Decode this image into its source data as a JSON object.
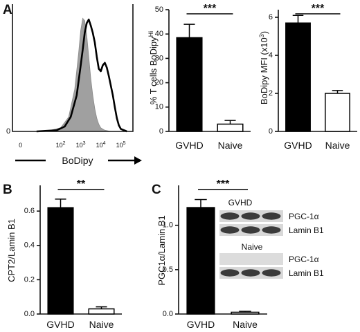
{
  "panels": {
    "A": {
      "letter": "A"
    },
    "B": {
      "letter": "B"
    },
    "C": {
      "letter": "C"
    }
  },
  "chart_data": [
    {
      "id": "A-histogram",
      "type": "area",
      "xlabel": "BoDipy",
      "x_ticks": [
        "0",
        "10^2",
        "10^3",
        "10^4",
        "10^5"
      ],
      "x_tick_positions": [
        0,
        2,
        3,
        4,
        5
      ],
      "y_ticks": [
        "0"
      ],
      "xlim": [
        -0.4,
        5.6
      ],
      "ylim": [
        0,
        100
      ],
      "grid": false,
      "series": [
        {
          "style": "filled-gray",
          "x": [
            0.8,
            1.5,
            2.0,
            2.4,
            2.7,
            2.9,
            3.0,
            3.1,
            3.2,
            3.3,
            3.4,
            3.5,
            3.6,
            3.7,
            3.8,
            3.9,
            4.0,
            4.2,
            4.5,
            5.0
          ],
          "y": [
            0,
            1,
            3,
            12,
            35,
            66,
            84,
            94,
            92,
            80,
            62,
            44,
            30,
            19,
            11,
            6,
            3,
            1,
            0,
            0
          ]
        },
        {
          "style": "black-line",
          "x": [
            0.8,
            1.8,
            2.2,
            2.5,
            2.8,
            3.0,
            3.1,
            3.2,
            3.3,
            3.4,
            3.5,
            3.6,
            3.7,
            3.8,
            3.9,
            4.0,
            4.1,
            4.2,
            4.3,
            4.4,
            4.5,
            4.6,
            4.7,
            4.8,
            4.9,
            5.0,
            5.3
          ],
          "y": [
            0,
            1,
            4,
            12,
            30,
            55,
            68,
            82,
            90,
            93,
            88,
            82,
            74,
            62,
            52,
            50,
            55,
            57,
            53,
            46,
            38,
            30,
            20,
            11,
            5,
            2,
            0
          ]
        }
      ]
    },
    {
      "id": "A-percent",
      "type": "bar",
      "categories": [
        "GVHD",
        "Naive"
      ],
      "values": [
        38.5,
        3.0
      ],
      "errors": [
        5.5,
        1.5
      ],
      "ylabel": "% T cells BoDipy^Hi",
      "ylabel_main": "% T cells BoDipy",
      "ylabel_sup": "Hi",
      "ylim": [
        0,
        50
      ],
      "y_ticks": [
        "0",
        "10",
        "20",
        "30",
        "40",
        "50"
      ],
      "y_tick_values": [
        0,
        10,
        20,
        30,
        40,
        50
      ],
      "significance": "***",
      "bar_styles": [
        "filled",
        "open"
      ]
    },
    {
      "id": "A-mfi",
      "type": "bar",
      "categories": [
        "GVHD",
        "Naive"
      ],
      "values": [
        5.7,
        2.0
      ],
      "errors": [
        0.4,
        0.15
      ],
      "ylabel": "BoDipy MFI (x10^3)",
      "ylabel_main": "BoDipy MFI (x10",
      "ylabel_sup": "3",
      "ylabel_end": ")",
      "ylim": [
        0,
        6.4
      ],
      "y_ticks": [
        "0",
        "2",
        "4",
        "6"
      ],
      "y_tick_values": [
        0,
        2,
        4,
        6
      ],
      "significance": "***",
      "bar_styles": [
        "filled",
        "open"
      ]
    },
    {
      "id": "B-cpt2",
      "type": "bar",
      "categories": [
        "GVHD",
        "Naive"
      ],
      "values": [
        0.62,
        0.03
      ],
      "errors": [
        0.05,
        0.012
      ],
      "ylabel": "CPT2/Lamin B1",
      "ylim": [
        0,
        0.75
      ],
      "y_ticks": [
        "0.0",
        "0.2",
        "0.4",
        "0.6"
      ],
      "y_tick_values": [
        0,
        0.2,
        0.4,
        0.6
      ],
      "significance": "**",
      "bar_styles": [
        "filled",
        "open"
      ]
    },
    {
      "id": "C-pgc1a",
      "type": "bar",
      "categories": [
        "GVHD",
        "Naive"
      ],
      "values": [
        1.2,
        0.02
      ],
      "errors": [
        0.09,
        0.01
      ],
      "ylabel": "PGC1α/Lamin B1",
      "ylim": [
        0,
        1.45
      ],
      "y_ticks": [
        "0.0",
        "0.5",
        "1.0"
      ],
      "y_tick_values": [
        0,
        0.5,
        1.0
      ],
      "significance": "***",
      "bar_styles": [
        "filled",
        "open"
      ]
    }
  ],
  "blot": {
    "groups": [
      {
        "title": "GVHD",
        "rows": [
          {
            "label": "PGC-1α",
            "band": "dark"
          },
          {
            "label": "Lamin B1",
            "band": "dark"
          }
        ]
      },
      {
        "title": "Naive",
        "rows": [
          {
            "label": "PGC-1α",
            "band": "faint"
          },
          {
            "label": "Lamin B1",
            "band": "dark"
          }
        ]
      }
    ]
  }
}
